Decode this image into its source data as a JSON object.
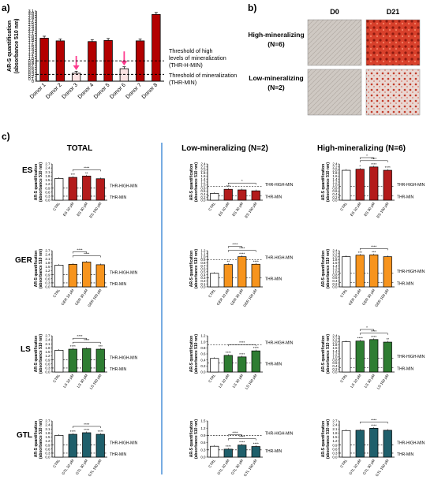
{
  "panels": {
    "a_label": "a)",
    "b_label": "b)",
    "c_label": "c)"
  },
  "panel_b": {
    "col_d0": "D0",
    "col_d21": "D21",
    "row_high": "High-mineralizing",
    "row_high_n": "(N=6)",
    "row_low": "Low-mineralizing",
    "row_low_n": "(N=2)"
  },
  "panel_c": {
    "col_total": "TOTAL",
    "col_low": "Low-mineralizing (N=2)",
    "col_high": "High-mineralizing (N=6)",
    "thr_high_label": "THR-HIGH-MIN",
    "thr_min_label": "THR-MIN"
  },
  "colors": {
    "ES": "#b31b1b",
    "GER": "#f7941d",
    "LS": "#2e7d32",
    "GTL": "#1f5f6b",
    "ctrl": "#ffffff",
    "donor": "#b30000",
    "donor_low": "#fbe3e3",
    "arrow": "#ff3b8f",
    "divider": "#4a90d9"
  },
  "chart_data": [
    {
      "type": "bar",
      "panel": "a",
      "categories": [
        "Donor 1",
        "Donor 2",
        "Donor 3",
        "Donor 4",
        "Donor 5",
        "Donor 6",
        "Donor 7",
        "Donor 8"
      ],
      "values": [
        1.9,
        1.78,
        0.35,
        1.75,
        1.8,
        0.55,
        1.78,
        2.95
      ],
      "ylabel": "AR-S quantification (absorbance 510 nm)",
      "ylim": [
        0,
        3.1
      ],
      "yticks": [
        "0",
        "0.1",
        "0.2",
        "0.3",
        "0.4",
        "0.5",
        "0.6",
        "0.7",
        "0.8",
        "0.9",
        "1.0",
        "1.1",
        "1.2",
        "1.3",
        "1.4",
        "1.5",
        "1.6",
        "1.7",
        "1.8",
        "1.9",
        "2.0",
        "2.1",
        "2.2",
        "2.3",
        "2.4",
        "2.5",
        "2.6",
        "2.7",
        "2.8",
        "2.9",
        "3.0",
        "3.1"
      ],
      "thresholds": [
        0.9,
        0.3
      ],
      "annotations": [
        "Threshold of high levels of mineralization (THR-H-MIN)",
        "Threshold of mineralization (THR-MIN)"
      ],
      "arrow_donors": [
        "Donor 3",
        "Donor 6"
      ]
    },
    {
      "type": "bar",
      "panel": "c",
      "row": "ES",
      "col": "total",
      "categories": [
        "CTRL",
        "ES 10 µM",
        "ES 30 µM",
        "ES 100 µM"
      ],
      "values": [
        1.62,
        1.7,
        1.8,
        1.6
      ],
      "ylabel": "AR-S quantification (absorbance 510 nm)",
      "yticks": [
        "0.0",
        "0.3",
        "0.6",
        "0.9",
        "1.2",
        "1.5",
        "1.8",
        "2.1",
        "2.4",
        "2.7"
      ],
      "ylim": [
        0,
        2.7
      ],
      "stars": [
        "",
        "***",
        "**",
        ""
      ],
      "brackets": [
        "****"
      ]
    },
    {
      "type": "bar",
      "panel": "c",
      "row": "ES",
      "col": "low",
      "categories": [
        "CTRL",
        "ES 10 µM",
        "ES 30 µM",
        "ES 100 µM"
      ],
      "values": [
        0.45,
        0.72,
        0.68,
        0.62
      ],
      "ylabel": "AR-S quantification (absorbance 510 nm)",
      "yticks": [
        "0.0",
        "0.2",
        "0.4",
        "0.6",
        "0.8",
        "1.0",
        "1.2",
        "1.4",
        "1.6",
        "1.8",
        "2.0",
        "2.2",
        "2.4"
      ],
      "ylim": [
        0,
        2.4
      ],
      "stars": [
        "",
        "***",
        "",
        ""
      ],
      "brackets": [
        "*"
      ]
    },
    {
      "type": "bar",
      "panel": "c",
      "row": "ES",
      "col": "high",
      "categories": [
        "CTRL",
        "ES 10 µM",
        "ES 30 µM",
        "ES 100 µM"
      ],
      "values": [
        1.98,
        2.05,
        2.2,
        1.98
      ],
      "ylabel": "AR-S quantification (absorbance 510 nm)",
      "yticks": [
        "0.0",
        "0.2",
        "0.4",
        "0.6",
        "0.8",
        "1.0",
        "1.2",
        "1.4",
        "1.6",
        "1.8",
        "2.0",
        "2.2",
        "2.4"
      ],
      "ylim": [
        0,
        2.4
      ],
      "stars": [
        "",
        "*",
        "****",
        "****"
      ],
      "brackets": [
        "****",
        "*"
      ]
    },
    {
      "type": "bar",
      "panel": "c",
      "row": "GER",
      "col": "total",
      "categories": [
        "CTRL",
        "GER 10 µM",
        "GER 30 µM",
        "GER 100 µM"
      ],
      "values": [
        1.62,
        1.68,
        1.85,
        1.65
      ],
      "ylabel": "AR-S quantification (absorbance 510 nm)",
      "yticks": [
        "0.0",
        "0.3",
        "0.6",
        "0.9",
        "1.2",
        "1.5",
        "1.8",
        "2.1",
        "2.4",
        "2.7"
      ],
      "ylim": [
        0,
        2.7
      ],
      "stars": [
        "",
        "",
        "",
        ""
      ],
      "brackets": [
        "****",
        "****"
      ]
    },
    {
      "type": "bar",
      "panel": "c",
      "row": "GER",
      "col": "low",
      "categories": [
        "CTRL",
        "GER 10 µM",
        "GER 30 µM",
        "GER 100 µM"
      ],
      "values": [
        0.45,
        0.74,
        1.0,
        0.75
      ],
      "ylabel": "AR-S quantification (absorbance 510 nm)",
      "yticks": [
        "0.0",
        "0.1",
        "0.2",
        "0.3",
        "0.4",
        "0.5",
        "0.6",
        "0.7",
        "0.8",
        "0.9",
        "1.0",
        "1.1",
        "1.2"
      ],
      "ylim": [
        0,
        1.2
      ],
      "stars": [
        "",
        "**",
        "****",
        "****"
      ],
      "brackets": [
        "****",
        "****"
      ]
    },
    {
      "type": "bar",
      "panel": "c",
      "row": "GER",
      "col": "high",
      "categories": [
        "CTRL",
        "GER 10 µM",
        "GER 30 µM",
        "GER 100 µM"
      ],
      "values": [
        2.0,
        2.1,
        2.12,
        2.0
      ],
      "ylabel": "AR-S quantification (absorbance 510 nm)",
      "yticks": [
        "0.0",
        "0.2",
        "0.4",
        "0.6",
        "0.8",
        "1.0",
        "1.2",
        "1.4",
        "1.6",
        "1.8",
        "2.0",
        "2.2",
        "2.4"
      ],
      "ylim": [
        0,
        2.4
      ],
      "stars": [
        "",
        "***",
        "***",
        ""
      ],
      "brackets": [
        "****"
      ]
    },
    {
      "type": "bar",
      "panel": "c",
      "row": "LS",
      "col": "total",
      "categories": [
        "CTRL",
        "LS 10 µM",
        "LS 30 µM",
        "LS 100 µM"
      ],
      "values": [
        1.62,
        1.7,
        1.75,
        1.7
      ],
      "ylabel": "AR-S quantification (absorbance 510 nm)",
      "yticks": [
        "0.0",
        "0.3",
        "0.6",
        "0.9",
        "1.2",
        "1.5",
        "1.8",
        "2.1",
        "2.4",
        "2.7"
      ],
      "ylim": [
        0,
        2.7
      ],
      "stars": [
        "",
        "****",
        "",
        "***"
      ],
      "brackets": [
        "****",
        "****"
      ]
    },
    {
      "type": "bar",
      "panel": "c",
      "row": "LS",
      "col": "low",
      "categories": [
        "CTRL",
        "LS 10 µM",
        "LS 30 µM",
        "LS 100 µM"
      ],
      "values": [
        0.45,
        0.55,
        0.5,
        0.7
      ],
      "ylabel": "AR-S quantification (absorbance 510 nm)",
      "yticks": [
        "0.0",
        "0.2",
        "0.4",
        "0.6",
        "0.8",
        "1.0",
        "1.2"
      ],
      "ylim": [
        0,
        1.2
      ],
      "stars": [
        "",
        "****",
        "****",
        "****"
      ],
      "brackets": [
        "****"
      ]
    },
    {
      "type": "bar",
      "panel": "c",
      "row": "LS",
      "col": "high",
      "categories": [
        "CTRL",
        "LS 10 µM",
        "LS 30 µM",
        "LS 100 µM"
      ],
      "values": [
        2.0,
        2.05,
        2.15,
        1.98
      ],
      "ylabel": "AR-S quantification (absorbance 510 nm)",
      "yticks": [
        "0.0",
        "0.2",
        "0.4",
        "0.6",
        "0.8",
        "1.0",
        "1.2",
        "1.4",
        "1.6",
        "1.8",
        "2.0",
        "2.2",
        "2.4"
      ],
      "ylim": [
        0,
        2.4
      ],
      "stars": [
        "",
        "****",
        "****",
        "**"
      ],
      "brackets": [
        "****",
        "*"
      ]
    },
    {
      "type": "bar",
      "panel": "c",
      "row": "GTL",
      "col": "total",
      "categories": [
        "CTRL",
        "GTL 10 µM",
        "GTL 30 µM",
        "GTL 100 µM"
      ],
      "values": [
        1.62,
        1.7,
        1.82,
        1.7
      ],
      "ylabel": "AR-S quantification (absorbance 510 nm)",
      "yticks": [
        "0.0",
        "0.3",
        "0.6",
        "0.9",
        "1.2",
        "1.5",
        "1.8",
        "2.1",
        "2.4",
        "2.7"
      ],
      "ylim": [
        0,
        2.7
      ],
      "stars": [
        "",
        "****",
        "****",
        "****"
      ],
      "brackets": [
        "****"
      ]
    },
    {
      "type": "bar",
      "panel": "c",
      "row": "GTL",
      "col": "low",
      "categories": [
        "CTRL",
        "GTL 10 µM",
        "GTL 30 µM",
        "GTL 100 µM"
      ],
      "values": [
        0.45,
        0.33,
        0.5,
        0.44
      ],
      "ylabel": "AR-S quantification (absorbance 510 nm)",
      "yticks": [
        "0.0",
        "0.3",
        "0.6",
        "0.9",
        "1.2",
        "1.5"
      ],
      "ylim": [
        0,
        1.5
      ],
      "stars": [
        "",
        "****",
        "****",
        "****"
      ],
      "brackets": [
        "****",
        "****"
      ]
    },
    {
      "type": "bar",
      "panel": "c",
      "row": "GTL",
      "col": "high",
      "categories": [
        "CTRL",
        "GTL 10 µM",
        "GTL 30 µM",
        "GTL 100 µM"
      ],
      "values": [
        1.98,
        2.0,
        2.15,
        2.0
      ],
      "ylabel": "AR-S quantification (absorbance 510 nm)",
      "yticks": [
        "0.0",
        "0.3",
        "0.6",
        "0.9",
        "1.2",
        "1.5",
        "1.8",
        "2.1",
        "2.4",
        "2.7"
      ],
      "ylim": [
        0,
        2.7
      ],
      "stars": [
        "",
        "",
        "****",
        ""
      ],
      "brackets": [
        "****"
      ]
    }
  ]
}
